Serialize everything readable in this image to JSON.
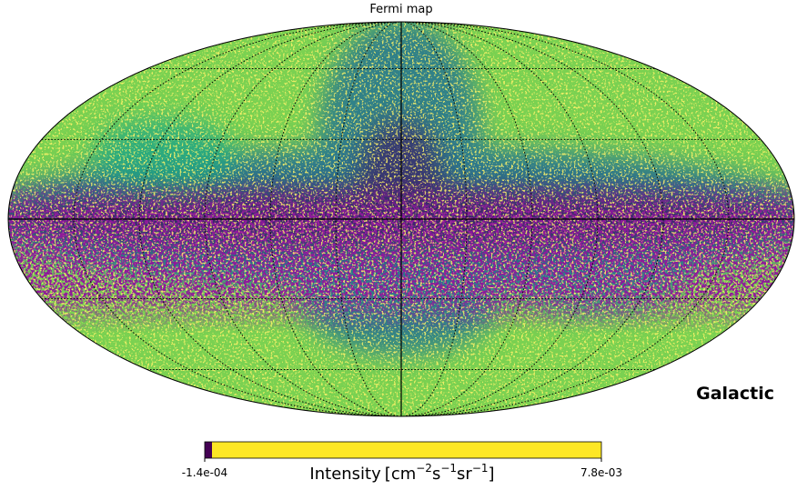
{
  "title": "Fermi map",
  "coordinate_label": "Galactic",
  "colorbar": {
    "min_label": "-1.4e-04",
    "max_label": "7.8e-03",
    "label": {
      "quantity": "Intensity",
      "open": "[",
      "close": "]",
      "units": [
        {
          "base": "cm",
          "exp": "−2"
        },
        {
          "base": "s",
          "exp": "−1"
        },
        {
          "base": "sr",
          "exp": "−1"
        }
      ]
    }
  }
}
